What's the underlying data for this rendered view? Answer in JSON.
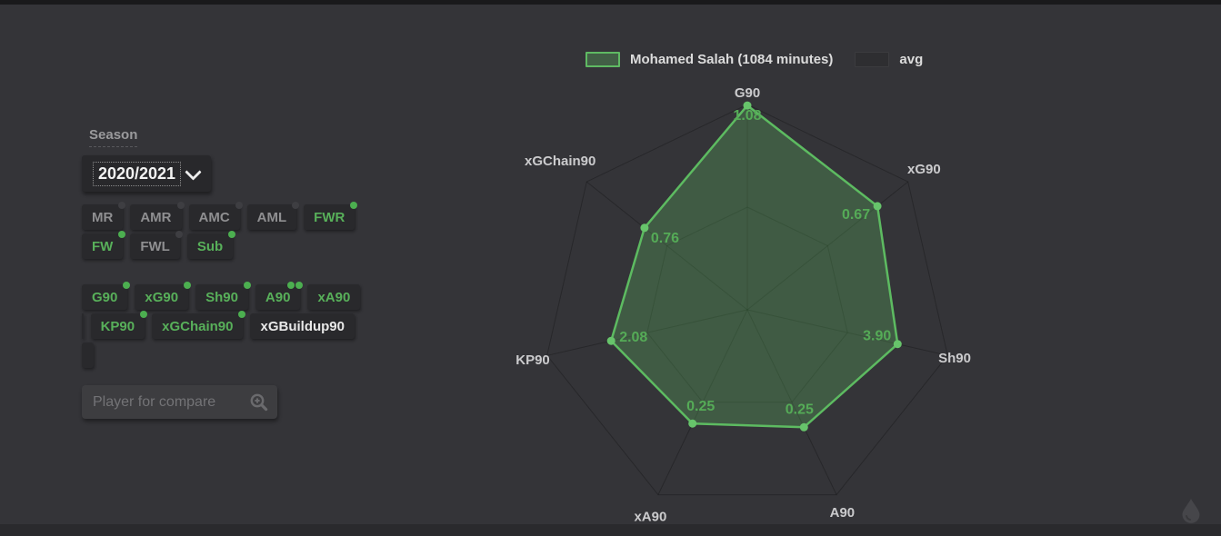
{
  "app": {
    "background": "#343438",
    "accent_green": "#5dbb61",
    "value_text_green": "#55ab57",
    "inactive_text": "#8f8f91"
  },
  "sidebar": {
    "season_label": "Season",
    "season_select": {
      "value": "2020/2021",
      "chevron_icon": "chevron-down-icon"
    },
    "position_rows": [
      [
        {
          "label": "MR",
          "active": false,
          "dots": 1
        },
        {
          "label": "AMR",
          "active": false,
          "dots": 1
        },
        {
          "label": "AMC",
          "active": false,
          "dots": 1
        },
        {
          "label": "AML",
          "active": false,
          "dots": 1
        },
        {
          "label": "FWR",
          "active": true,
          "dots": 1
        }
      ],
      [
        {
          "label": "FW",
          "active": true,
          "dots": 1
        },
        {
          "label": "FWL",
          "active": false,
          "dots": 1
        },
        {
          "label": "Sub",
          "active": true,
          "dots": 1
        }
      ]
    ],
    "stat_rows": [
      [
        {
          "label": "G90",
          "state": "active",
          "dots": 1
        },
        {
          "label": "xG90",
          "state": "active",
          "dots": 1
        },
        {
          "label": "Sh90",
          "state": "active",
          "dots": 1
        },
        {
          "label": "A90",
          "state": "active",
          "dots": 2
        },
        {
          "label": "xA90",
          "state": "active",
          "dots": 0
        }
      ],
      [
        {
          "label": "",
          "state": "stub",
          "dots": 0
        },
        {
          "label": "KP90",
          "state": "active",
          "dots": 1
        },
        {
          "label": "xGChain90",
          "state": "active",
          "dots": 1
        },
        {
          "label": "xGBuildup90",
          "state": "inactive-white",
          "dots": 0
        }
      ],
      [
        {
          "label": "",
          "state": "stub",
          "dots": 0
        }
      ]
    ],
    "compare_search": {
      "placeholder": "Player for compare",
      "value": "",
      "icon": "zoom-in-icon"
    }
  },
  "legend": {
    "player": {
      "label": "Mohamed Salah (1084 minutes)"
    },
    "avg": {
      "label": "avg"
    }
  },
  "chart_data": {
    "type": "radar",
    "categories": [
      "G90",
      "xG90",
      "Sh90",
      "A90",
      "xA90",
      "KP90",
      "xGChain90"
    ],
    "series": [
      {
        "name": "Mohamed Salah (1084 minutes)",
        "values": [
          1.08,
          0.67,
          3.9,
          0.25,
          0.25,
          2.08,
          0.76
        ],
        "value_labels": [
          "1.08",
          "0.67",
          "3.90",
          "0.25",
          "0.25",
          "2.08",
          "0.76"
        ],
        "fractions": [
          0.995,
          0.81,
          0.75,
          0.635,
          0.615,
          0.68,
          0.64
        ],
        "color": "#5dbb61"
      },
      {
        "name": "avg",
        "values": null
      }
    ],
    "rings": [
      0.5,
      1.0
    ],
    "legend_position": "top",
    "grid": true
  }
}
